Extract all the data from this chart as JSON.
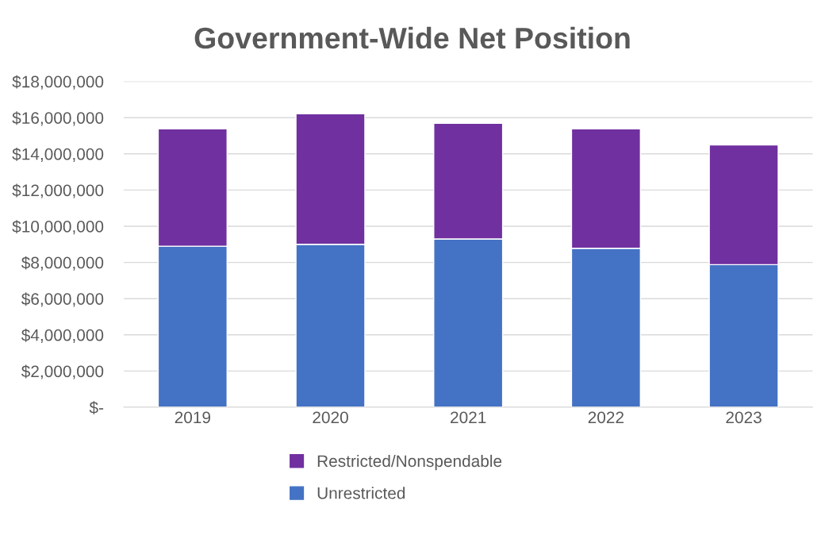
{
  "chart_data": {
    "type": "bar",
    "title": "Government-Wide Net Position",
    "stacked": true,
    "categories": [
      "2019",
      "2020",
      "2021",
      "2022",
      "2023"
    ],
    "series": [
      {
        "name": "Unrestricted",
        "color": "#4472c4",
        "values": [
          8900000,
          9000000,
          9300000,
          8780000,
          7880000
        ]
      },
      {
        "name": "Restricted/Nonspendable",
        "color": "#7030a0",
        "values": [
          6480000,
          7220000,
          6390000,
          6600000,
          6610000
        ]
      }
    ],
    "ylim": [
      0,
      18000000
    ],
    "yticks": [
      {
        "value": 0,
        "label": "$-"
      },
      {
        "value": 2000000,
        "label": "$2,000,000"
      },
      {
        "value": 4000000,
        "label": "$4,000,000"
      },
      {
        "value": 6000000,
        "label": "$6,000,000"
      },
      {
        "value": 8000000,
        "label": "$8,000,000"
      },
      {
        "value": 10000000,
        "label": "$10,000,000"
      },
      {
        "value": 12000000,
        "label": "$12,000,000"
      },
      {
        "value": 14000000,
        "label": "$14,000,000"
      },
      {
        "value": 16000000,
        "label": "$16,000,000"
      },
      {
        "value": 18000000,
        "label": "$18,000,000"
      }
    ],
    "grid": "y",
    "legend": "bottom"
  }
}
